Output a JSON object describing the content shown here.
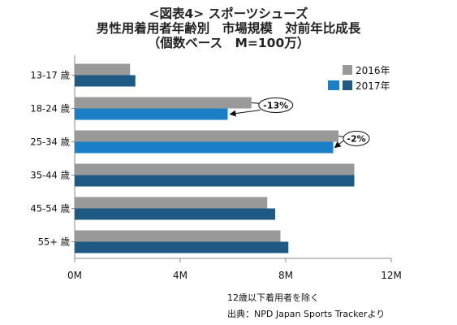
{
  "titles": {
    "line1": "<図表4> スポーツシューズ",
    "line2": "男性用着用者年齢別　市場規模　対前年比成長",
    "line3": "（個数ベース　M=100万）"
  },
  "notes": {
    "exclusion": "12歳以下着用者を除く",
    "source": "出典：NPD Japan Sports Trackerより"
  },
  "colors": {
    "s2016": "#999999",
    "s2017": "#1f5a85",
    "s2017_highlight": "#1a7fc4"
  },
  "chart_data": {
    "type": "bar",
    "orientation": "horizontal",
    "categories": [
      "13-17 歳",
      "18-24 歳",
      "25-34 歳",
      "35-44 歳",
      "45-54 歳",
      "55+ 歳"
    ],
    "series": [
      {
        "name": "2016年",
        "values": [
          2.1,
          6.7,
          10.0,
          10.6,
          7.3,
          7.8
        ]
      },
      {
        "name": "2017年",
        "values": [
          2.3,
          5.8,
          9.8,
          10.6,
          7.6,
          8.1
        ]
      }
    ],
    "highlighted_2017_categories": [
      "18-24 歳",
      "25-34 歳"
    ],
    "xlim": [
      0,
      12
    ],
    "xticks": [
      {
        "value": 0,
        "label": "0M"
      },
      {
        "value": 4,
        "label": "4M"
      },
      {
        "value": 8,
        "label": "8M"
      },
      {
        "value": 12,
        "label": "12M"
      }
    ],
    "annotations": [
      {
        "category": "18-24 歳",
        "text": "-13%"
      },
      {
        "category": "25-34 歳",
        "text": "-2%"
      }
    ],
    "legend_position": "top-right",
    "grid": false
  }
}
